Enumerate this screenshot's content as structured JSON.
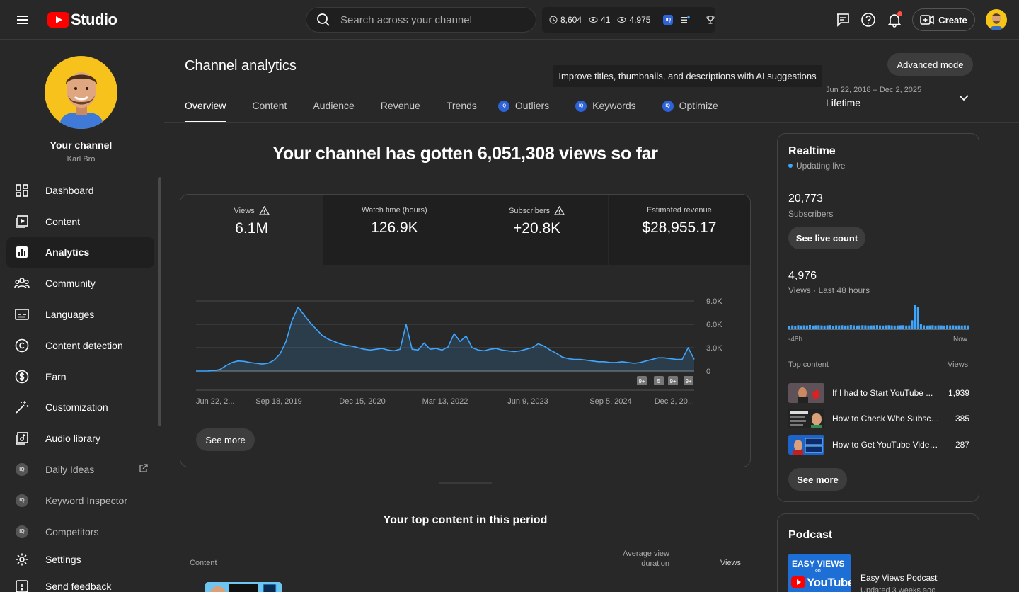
{
  "app": {
    "name": "Studio"
  },
  "search": {
    "placeholder": "Search across your channel"
  },
  "stats_bar": {
    "watch": "8,604",
    "subs": "41",
    "views": "4,975",
    "badge": "IQ"
  },
  "header": {
    "create_label": "Create"
  },
  "sidebar": {
    "channel_name": "Your channel",
    "channel_handle": "Karl Bro",
    "items": [
      {
        "label": "Dashboard",
        "icon": "dashboard-icon"
      },
      {
        "label": "Content",
        "icon": "content-icon"
      },
      {
        "label": "Analytics",
        "icon": "analytics-icon",
        "active": true
      },
      {
        "label": "Community",
        "icon": "community-icon"
      },
      {
        "label": "Languages",
        "icon": "subtitles-icon"
      },
      {
        "label": "Content detection",
        "icon": "copyright-icon"
      },
      {
        "label": "Earn",
        "icon": "dollar-icon"
      },
      {
        "label": "Customization",
        "icon": "magic-wand-icon"
      },
      {
        "label": "Audio library",
        "icon": "audio-library-icon"
      },
      {
        "label": "Daily Ideas",
        "icon": "vidiq-icon",
        "external": true
      },
      {
        "label": "Keyword Inspector",
        "icon": "vidiq-icon"
      },
      {
        "label": "Competitors",
        "icon": "vidiq-icon"
      },
      {
        "label": "Settings",
        "icon": "gear-icon"
      },
      {
        "label": "Send feedback",
        "icon": "feedback-icon"
      }
    ]
  },
  "main": {
    "title": "Channel analytics",
    "advanced_mode": "Advanced mode",
    "tooltip": "Improve titles, thumbnails, and descriptions with AI suggestions",
    "tabs": [
      {
        "label": "Overview",
        "active": true
      },
      {
        "label": "Content"
      },
      {
        "label": "Audience"
      },
      {
        "label": "Revenue"
      },
      {
        "label": "Trends"
      },
      {
        "label": "Outliers",
        "vidiq": true
      },
      {
        "label": "Keywords",
        "vidiq": true
      },
      {
        "label": "Optimize",
        "vidiq": true
      }
    ],
    "date_range": {
      "range": "Jun 22, 2018 – Dec 2, 2025",
      "label": "Lifetime"
    },
    "headline": "Your channel has gotten 6,051,308 views so far",
    "metrics": [
      {
        "label": "Views",
        "value": "6.1M",
        "warning": true
      },
      {
        "label": "Watch time (hours)",
        "value": "126.9K"
      },
      {
        "label": "Subscribers",
        "value": "+20.8K",
        "warning": true
      },
      {
        "label": "Estimated revenue",
        "value": "$28,955.17"
      }
    ],
    "see_more": "See more",
    "top_content_title": "Your top content in this period",
    "table_headers": {
      "content": "Content",
      "avg_view_duration_1": "Average view",
      "avg_view_duration_2": "duration",
      "views": "Views"
    }
  },
  "chart_data": {
    "type": "line",
    "x_tick_labels": [
      "Jun 22, 2...",
      "Sep 18, 2019",
      "Dec 15, 2020",
      "Mar 13, 2022",
      "Jun 9, 2023",
      "Sep 5, 2024",
      "Dec 2, 20..."
    ],
    "y_tick_labels": [
      "9.0K",
      "6.0K",
      "3.0K",
      "0"
    ],
    "ylim": [
      0,
      9000
    ],
    "markers": [
      "9+",
      "5",
      "9+",
      "9+"
    ],
    "series": [
      {
        "values": [
          0,
          0,
          10,
          50,
          200,
          700,
          1100,
          1300,
          1250,
          1100,
          1000,
          900,
          1000,
          1400,
          2200,
          3800,
          6500,
          8200,
          7200,
          6200,
          5400,
          4600,
          4100,
          3800,
          3500,
          3300,
          3200,
          3000,
          2800,
          2700,
          2800,
          2900,
          2700,
          2600,
          2800,
          6000,
          2800,
          2700,
          3600,
          2800,
          2900,
          2700,
          3100,
          4800,
          3800,
          4500,
          3000,
          2700,
          2600,
          2800,
          2900,
          2700,
          2600,
          2500,
          2600,
          2800,
          3000,
          3500,
          3200,
          2700,
          2300,
          1800,
          1600,
          1500,
          1500,
          1400,
          1300,
          1200,
          1200,
          1100,
          1100,
          1200,
          1100,
          1000,
          1100,
          1300,
          1500,
          1700,
          1700,
          1600,
          1500,
          1500,
          3000,
          1500
        ]
      }
    ]
  },
  "realtime": {
    "title": "Realtime",
    "status": "Updating live",
    "subs_value": "20,773",
    "subs_label": "Subscribers",
    "see_live": "See live count",
    "views_value": "4,976",
    "views_label": "Views · Last 48 hours",
    "axis_start": "-48h",
    "axis_end": "Now",
    "bars": [
      30,
      34,
      32,
      36,
      33,
      35,
      34,
      38,
      33,
      35,
      36,
      34,
      33,
      35,
      37,
      32,
      35,
      34,
      36,
      33,
      34,
      38,
      35,
      33,
      34,
      36,
      35,
      33,
      34,
      35,
      37,
      34,
      33,
      35,
      36,
      34,
      33,
      34,
      35,
      36,
      33,
      34,
      80,
      215,
      200,
      50,
      35,
      33,
      34,
      36,
      33,
      35,
      34,
      33,
      36,
      34,
      35,
      33,
      34,
      33,
      35,
      34
    ],
    "top_content_label": "Top content",
    "views_col_label": "Views",
    "top_content": [
      {
        "title": "If I had to Start YouTube ...",
        "views": "1,939"
      },
      {
        "title": "How to Check Who Subscri...",
        "views": "385"
      },
      {
        "title": "How to Get YouTube Video...",
        "views": "287"
      }
    ],
    "see_more": "See more"
  },
  "podcast": {
    "title": "Podcast",
    "thumb_text_1": "EASY VIEWS",
    "thumb_text_2": "on",
    "thumb_text_3": "YouTube",
    "name": "Easy Views Podcast",
    "updated": "Updated 3 weeks ago"
  },
  "colors": {
    "accent": "#3ea6ff",
    "chart_line": "#3ea6ff",
    "logo_red": "#ff0000",
    "vidiq_blue": "#2d63d8",
    "background": "#282828"
  }
}
